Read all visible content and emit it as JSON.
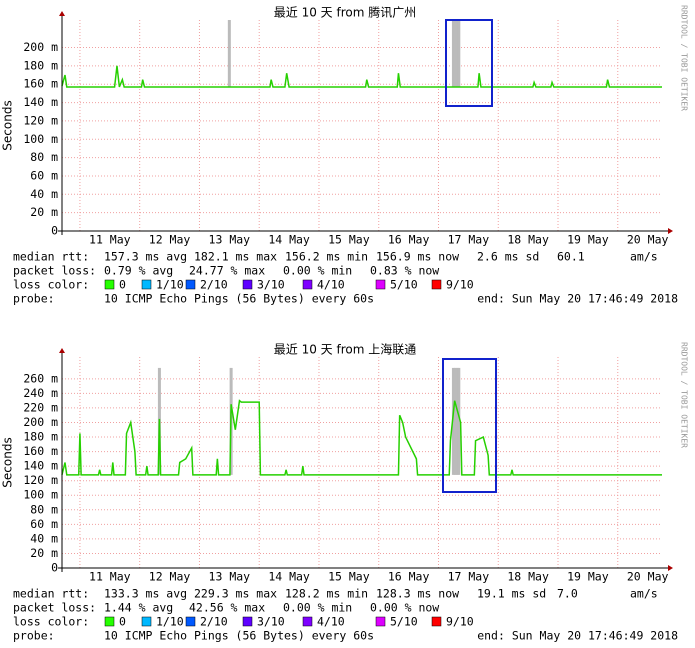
{
  "chart_data": [
    {
      "type": "line",
      "title": "最近 10 天 from 腾讯广州",
      "ylabel": "Seconds",
      "watermark": "RRDTOOL / TOBI OETIKER",
      "xlim": [
        10.7,
        20.74
      ],
      "ylim": [
        0,
        230
      ],
      "xticks": [
        11,
        12,
        13,
        14,
        15,
        16,
        17,
        18,
        19,
        20
      ],
      "xtick_labels": [
        {
          "value": 11.5,
          "label": "11 May"
        },
        {
          "value": 12.5,
          "label": "12 May"
        },
        {
          "value": 13.5,
          "label": "13 May"
        },
        {
          "value": 14.5,
          "label": "14 May"
        },
        {
          "value": 15.5,
          "label": "15 May"
        },
        {
          "value": 16.5,
          "label": "16 May"
        },
        {
          "value": 17.5,
          "label": "17 May"
        },
        {
          "value": 18.5,
          "label": "18 May"
        },
        {
          "value": 19.5,
          "label": "19 May"
        },
        {
          "value": 20.5,
          "label": "20 May"
        }
      ],
      "yticks": [
        0,
        {
          "value": 20,
          "label": "20 m"
        },
        {
          "value": 40,
          "label": "40 m"
        },
        {
          "value": 60,
          "label": "60 m"
        },
        {
          "value": 80,
          "label": "80 m"
        },
        {
          "value": 100,
          "label": "100 m"
        },
        {
          "value": 120,
          "label": "120 m"
        },
        {
          "value": 140,
          "label": "140 m"
        },
        {
          "value": 160,
          "label": "160 m"
        },
        {
          "value": 180,
          "label": "180 m"
        },
        {
          "value": 200,
          "label": "200 m"
        }
      ],
      "x": [
        10.7,
        10.75,
        10.78,
        11.58,
        11.62,
        11.66,
        11.71,
        11.74,
        12.03,
        12.05,
        12.08,
        14.18,
        14.2,
        14.23,
        14.43,
        14.46,
        14.5,
        15.78,
        15.8,
        15.83,
        16.31,
        16.33,
        16.36,
        17.66,
        17.68,
        17.71,
        18.58,
        18.6,
        18.63,
        18.88,
        18.9,
        18.93,
        19.81,
        19.83,
        19.86,
        20.74
      ],
      "series": [
        {
          "color": "#26d000",
          "values": [
            158,
            170,
            157,
            157,
            180,
            157,
            165,
            157,
            157,
            165,
            157,
            157,
            165,
            157,
            157,
            172,
            157,
            157,
            165,
            157,
            157,
            172,
            157,
            157,
            172,
            157,
            157,
            162,
            157,
            157,
            162,
            157,
            157,
            165,
            157,
            157
          ]
        }
      ],
      "smoke": {
        "color": "#bbbbbb",
        "x": [
          13.5,
          17.25,
          17.28,
          17.31,
          17.34
        ],
        "low": [
          157,
          157,
          157,
          157,
          157
        ],
        "high": [
          230,
          230,
          230,
          230,
          230
        ]
      },
      "stats": [
        {
          "label": "median rtt:",
          "items": [
            "157.3 ms avg",
            "182.1 ms max",
            "156.2 ms min",
            "156.9 ms now",
            "2.6 ms sd",
            "60.1",
            "am/s"
          ]
        },
        {
          "label": "packet loss:",
          "items": [
            "0.79 % avg",
            "24.77 % max",
            "0.00 % min",
            "0.83 % now"
          ]
        }
      ],
      "loss_label": "loss color:",
      "loss_colors": [
        {
          "label": "0",
          "color": "#26ff00"
        },
        {
          "label": "1/10",
          "color": "#00b8ff"
        },
        {
          "label": "2/10",
          "color": "#0059ff"
        },
        {
          "label": "3/10",
          "color": "#5e00ff"
        },
        {
          "label": "4/10",
          "color": "#7e00ff"
        },
        {
          "label": "5/10",
          "color": "#dd00ff"
        },
        {
          "label": "9/10",
          "color": "#ff0000"
        }
      ],
      "probe": {
        "label": "probe:",
        "text": "10 ICMP Echo Pings (56 Bytes) every 60s",
        "end": "end: Sun May 20 17:46:49 2018"
      }
    },
    {
      "type": "line",
      "title": "最近 10 天 from 上海联通",
      "ylabel": "Seconds",
      "watermark": "RRDTOOL / TOBI OETIKER",
      "xlim": [
        10.7,
        20.74
      ],
      "ylim": [
        0,
        290
      ],
      "xticks": [
        11,
        12,
        13,
        14,
        15,
        16,
        17,
        18,
        19,
        20
      ],
      "xtick_labels": [
        {
          "value": 11.5,
          "label": "11 May"
        },
        {
          "value": 12.5,
          "label": "12 May"
        },
        {
          "value": 13.5,
          "label": "13 May"
        },
        {
          "value": 14.5,
          "label": "14 May"
        },
        {
          "value": 15.5,
          "label": "15 May"
        },
        {
          "value": 16.5,
          "label": "16 May"
        },
        {
          "value": 17.5,
          "label": "17 May"
        },
        {
          "value": 18.5,
          "label": "18 May"
        },
        {
          "value": 19.5,
          "label": "19 May"
        },
        {
          "value": 20.5,
          "label": "20 May"
        }
      ],
      "yticks": [
        0,
        {
          "value": 20,
          "label": "20 m"
        },
        {
          "value": 40,
          "label": "40 m"
        },
        {
          "value": 60,
          "label": "60 m"
        },
        {
          "value": 80,
          "label": "80 m"
        },
        {
          "value": 100,
          "label": "100 m"
        },
        {
          "value": 120,
          "label": "120 m"
        },
        {
          "value": 140,
          "label": "140 m"
        },
        {
          "value": 160,
          "label": "160 m"
        },
        {
          "value": 180,
          "label": "180 m"
        },
        {
          "value": 200,
          "label": "200 m"
        },
        {
          "value": 220,
          "label": "220 m"
        },
        {
          "value": 240,
          "label": "240 m"
        },
        {
          "value": 260,
          "label": "260 m"
        }
      ],
      "x": [
        10.7,
        10.75,
        10.78,
        10.98,
        11.0,
        11.02,
        11.31,
        11.33,
        11.35,
        11.53,
        11.55,
        11.57,
        11.76,
        11.78,
        11.85,
        11.92,
        11.94,
        12.1,
        12.12,
        12.14,
        12.31,
        12.33,
        12.35,
        12.65,
        12.67,
        12.77,
        12.87,
        12.89,
        13.28,
        13.3,
        13.32,
        13.51,
        13.53,
        13.6,
        13.67,
        13.7,
        14.0,
        14.02,
        14.43,
        14.45,
        14.47,
        14.71,
        14.73,
        14.75,
        16.33,
        16.35,
        16.4,
        16.45,
        16.63,
        16.65,
        17.18,
        17.2,
        17.27,
        17.37,
        17.39,
        17.6,
        17.62,
        17.75,
        17.83,
        17.85,
        18.21,
        18.23,
        18.25,
        20.74
      ],
      "series": [
        {
          "color": "#26d000",
          "values": [
            128,
            145,
            128,
            128,
            185,
            128,
            128,
            135,
            128,
            128,
            145,
            128,
            128,
            185,
            200,
            160,
            128,
            128,
            140,
            128,
            128,
            205,
            128,
            128,
            145,
            150,
            165,
            128,
            128,
            150,
            128,
            128,
            225,
            190,
            230,
            228,
            228,
            128,
            128,
            135,
            128,
            128,
            140,
            128,
            128,
            210,
            200,
            180,
            150,
            128,
            128,
            175,
            230,
            200,
            128,
            128,
            175,
            180,
            155,
            128,
            128,
            135,
            128,
            128
          ]
        }
      ],
      "smoke": {
        "color": "#bbbbbb",
        "x": [
          12.33,
          13.53,
          17.25,
          17.28,
          17.31,
          17.34
        ],
        "low": [
          128,
          128,
          128,
          128,
          128,
          128
        ],
        "high": [
          275,
          275,
          275,
          275,
          275,
          275
        ]
      },
      "stats": [
        {
          "label": "median rtt:",
          "items": [
            "133.3 ms avg",
            "229.3 ms max",
            "128.2 ms min",
            "128.3 ms now",
            "19.1 ms sd",
            "7.0",
            "am/s"
          ]
        },
        {
          "label": "packet loss:",
          "items": [
            "1.44 % avg",
            "42.56 % max",
            "0.00 % min",
            "0.00 % now"
          ]
        }
      ],
      "loss_label": "loss color:",
      "loss_colors": [
        {
          "label": "0",
          "color": "#26ff00"
        },
        {
          "label": "1/10",
          "color": "#00b8ff"
        },
        {
          "label": "2/10",
          "color": "#0059ff"
        },
        {
          "label": "3/10",
          "color": "#5e00ff"
        },
        {
          "label": "4/10",
          "color": "#7e00ff"
        },
        {
          "label": "5/10",
          "color": "#dd00ff"
        },
        {
          "label": "9/10",
          "color": "#ff0000"
        }
      ],
      "probe": {
        "label": "probe:",
        "text": "10 ICMP Echo Pings (56 Bytes) every 60s",
        "end": "end: Sun May 20 17:46:49 2018"
      }
    }
  ]
}
